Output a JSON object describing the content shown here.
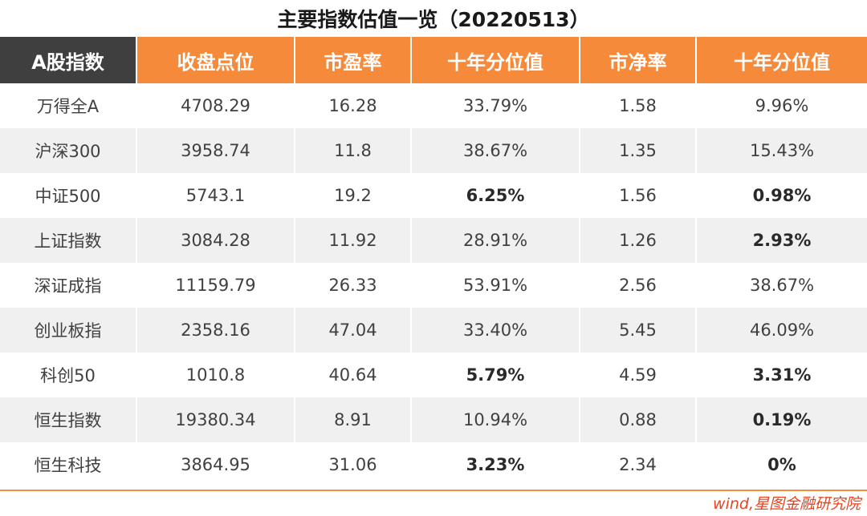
{
  "title": "主要指数估值一览（20220513）",
  "headers": [
    "A股指数",
    "收盘点位",
    "市盈率",
    "十年分位值",
    "市净率",
    "十年分位值"
  ],
  "rows": [
    {
      "cells": [
        "万得全A",
        "4708.29",
        "16.28",
        "33.79%",
        "1.58",
        "9.96%"
      ],
      "bold": [
        false,
        false,
        false,
        false,
        false,
        false
      ]
    },
    {
      "cells": [
        "沪深300",
        "3958.74",
        "11.8",
        "38.67%",
        "1.35",
        "15.43%"
      ],
      "bold": [
        false,
        false,
        false,
        false,
        false,
        false
      ]
    },
    {
      "cells": [
        "中证500",
        "5743.1",
        "19.2",
        "6.25%",
        "1.56",
        "0.98%"
      ],
      "bold": [
        false,
        false,
        false,
        true,
        false,
        true
      ]
    },
    {
      "cells": [
        "上证指数",
        "3084.28",
        "11.92",
        "28.91%",
        "1.26",
        "2.93%"
      ],
      "bold": [
        false,
        false,
        false,
        false,
        false,
        true
      ]
    },
    {
      "cells": [
        "深证成指",
        "11159.79",
        "26.33",
        "53.91%",
        "2.56",
        "38.67%"
      ],
      "bold": [
        false,
        false,
        false,
        false,
        false,
        false
      ]
    },
    {
      "cells": [
        "创业板指",
        "2358.16",
        "47.04",
        "33.40%",
        "5.45",
        "46.09%"
      ],
      "bold": [
        false,
        false,
        false,
        false,
        false,
        false
      ]
    },
    {
      "cells": [
        "科创50",
        "1010.8",
        "40.64",
        "5.79%",
        "4.59",
        "3.31%"
      ],
      "bold": [
        false,
        false,
        false,
        true,
        false,
        true
      ]
    },
    {
      "cells": [
        "恒生指数",
        "19380.34",
        "8.91",
        "10.94%",
        "0.88",
        "0.19%"
      ],
      "bold": [
        false,
        false,
        false,
        false,
        false,
        true
      ]
    },
    {
      "cells": [
        "恒生科技",
        "3864.95",
        "31.06",
        "3.23%",
        "2.34",
        "0%"
      ],
      "bold": [
        false,
        false,
        false,
        true,
        false,
        true
      ]
    }
  ],
  "source": "wind,星图金融研究院",
  "colors": {
    "header_accent": "#f58a3a",
    "header_first": "#3f3f3f",
    "source_text": "#e8431e"
  }
}
